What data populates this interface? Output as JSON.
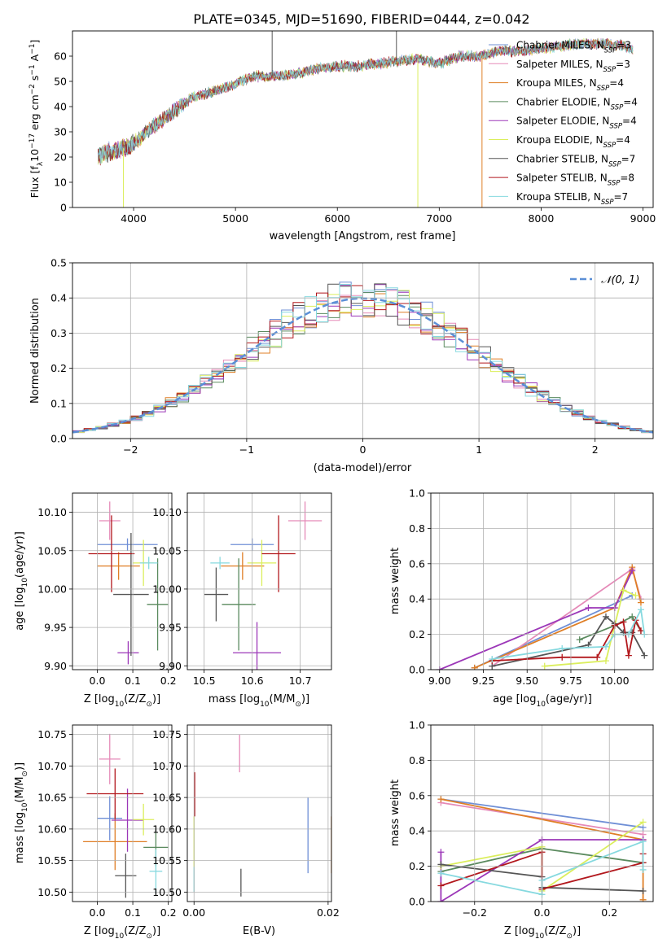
{
  "figure": {
    "title": "PLATE=0345, MJD=51690, FIBERID=0444, z=0.042"
  },
  "colors": {
    "Chabrier MILES": "#6f8fd6",
    "Salpeter MILES": "#e58ab8",
    "Kroupa MILES": "#df7f26",
    "Chabrier ELODIE": "#5a8a5e",
    "Salpeter ELODIE": "#9c37b8",
    "Kroupa ELODIE": "#dbee5c",
    "Chabrier STELIB": "#555555",
    "Salpeter STELIB": "#b2181d",
    "Kroupa STELIB": "#86d9df",
    "normal": "#5b8fd6"
  },
  "chart_data": [
    {
      "id": "spectrum",
      "type": "line",
      "xlabel": "wavelength [Angstrom, rest frame]",
      "ylabel": "Flux [f",
      "ylabel_sub": "λ",
      "ylabel_rest": "10",
      "ylabel_exp1": "−17",
      "ylabel_mid": " erg cm",
      "ylabel_exp2": "−2",
      "ylabel_mid2": " s",
      "ylabel_exp3": "−1",
      "ylabel_end": " A",
      "ylabel_exp4": "−1",
      "ylabel_close": "]",
      "xlim": [
        3400,
        9100
      ],
      "ylim": [
        0,
        70
      ],
      "xticks": [
        4000,
        5000,
        6000,
        7000,
        8000,
        9000
      ],
      "yticks": [
        0,
        10,
        20,
        30,
        40,
        50,
        60
      ],
      "legend": [
        {
          "model": "Chabrier MILES",
          "label": "Chabrier MILES, N",
          "sub": "SSP",
          "count": "=3"
        },
        {
          "model": "Salpeter MILES",
          "label": "Salpeter MILES, N",
          "sub": "SSP",
          "count": "=3"
        },
        {
          "model": "Kroupa MILES",
          "label": "Kroupa MILES, N",
          "sub": "SSP",
          "count": "=4"
        },
        {
          "model": "Chabrier ELODIE",
          "label": "Chabrier ELODIE, N",
          "sub": "SSP",
          "count": "=4"
        },
        {
          "model": "Salpeter ELODIE",
          "label": "Salpeter ELODIE, N",
          "sub": "SSP",
          "count": "=4"
        },
        {
          "model": "Kroupa ELODIE",
          "label": "Kroupa ELODIE, N",
          "sub": "SSP",
          "count": "=4"
        },
        {
          "model": "Chabrier STELIB",
          "label": "Chabrier STELIB, N",
          "sub": "SSP",
          "count": "=7"
        },
        {
          "model": "Salpeter STELIB",
          "label": "Salpeter STELIB, N",
          "sub": "SSP",
          "count": "=8"
        },
        {
          "model": "Kroupa STELIB",
          "label": "Kroupa STELIB, N",
          "sub": "SSP",
          "count": "=7"
        }
      ],
      "continuum": {
        "wavelength": [
          3650,
          3750,
          3850,
          3950,
          4050,
          4150,
          4300,
          4450,
          4600,
          4800,
          5000,
          5200,
          5400,
          5600,
          5800,
          6000,
          6200,
          6400,
          6600,
          6800,
          7000,
          7200,
          7400,
          7600,
          7800,
          8000,
          8200,
          8400,
          8600,
          8800,
          8900
        ],
        "flux": [
          20,
          22,
          23,
          24,
          27,
          31,
          35,
          40,
          44,
          46,
          49,
          52,
          52,
          53,
          55,
          56,
          56,
          57,
          58,
          59,
          57,
          60,
          60,
          62,
          62,
          63,
          64,
          65,
          65,
          64,
          63
        ]
      },
      "dropouts": [
        {
          "wavelength": 3900,
          "model": "Kroupa ELODIE",
          "to": 0
        },
        {
          "wavelength": 6790,
          "model": "Kroupa ELODIE",
          "to": 0
        },
        {
          "wavelength": 7420,
          "model": "Kroupa MILES",
          "to": 0
        },
        {
          "wavelength": 5360,
          "model": "Chabrier STELIB",
          "to": 70
        },
        {
          "wavelength": 6580,
          "model": "Chabrier STELIB",
          "to": 70
        }
      ]
    },
    {
      "id": "residuals",
      "type": "line",
      "xlabel": "(data-model)/error",
      "ylabel": "Normed distribution",
      "xlim": [
        -2.5,
        2.5
      ],
      "ylim": [
        0,
        0.5
      ],
      "xticks": [
        -2,
        -1,
        0,
        1,
        2
      ],
      "yticks": [
        0.0,
        0.1,
        0.2,
        0.3,
        0.4,
        0.5
      ],
      "grid": true,
      "legend": [
        {
          "label": "𝒩(0, 1)",
          "model": "normal"
        }
      ],
      "histogram_bins": {
        "start": -2.5,
        "width": 0.1,
        "count": 50
      },
      "series_note": "9 step histograms that follow the N(0,1) curve with scatter"
    },
    {
      "id": "age_vs_Z",
      "type": "scatter",
      "xlabel": "Z [log",
      "xlabel_sub": "10",
      "xlabel_rest": "(Z/Z",
      "xlabel_sun": "⊙",
      "xlabel_close": ")]",
      "ylabel": "age  [log",
      "ylabel_sub": "10",
      "ylabel_rest": "(age/yr)]",
      "xlim": [
        -0.07,
        0.21
      ],
      "ylim": [
        9.895,
        10.125
      ],
      "xticks": [
        0.0,
        0.1,
        0.2
      ],
      "yticks": [
        9.9,
        9.95,
        10.0,
        10.05,
        10.1
      ],
      "grid": true,
      "points": [
        {
          "model": "Chabrier MILES",
          "x": 0.085,
          "xerr": 0.085,
          "y": 10.058,
          "yerr": 0.008
        },
        {
          "model": "Salpeter MILES",
          "x": 0.035,
          "xerr": 0.03,
          "y": 10.089,
          "yerr": 0.025
        },
        {
          "model": "Kroupa MILES",
          "x": 0.06,
          "xerr": 0.06,
          "y": 10.03,
          "yerr": 0.018
        },
        {
          "model": "Chabrier ELODIE",
          "x": 0.17,
          "xerr": 0.03,
          "y": 9.98,
          "yerr": 0.06
        },
        {
          "model": "Salpeter ELODIE",
          "x": 0.087,
          "xerr": 0.03,
          "y": 9.917,
          "yerr": 0.015
        },
        {
          "model": "Kroupa ELODIE",
          "x": 0.13,
          "xerr": 0.03,
          "y": 10.034,
          "yerr": 0.03
        },
        {
          "model": "Chabrier STELIB",
          "x": 0.095,
          "xerr": 0.05,
          "y": 9.993,
          "yerr": 0.08
        },
        {
          "model": "Salpeter STELIB",
          "x": 0.04,
          "xerr": 0.065,
          "y": 10.046,
          "yerr": 0.05
        },
        {
          "model": "Kroupa STELIB",
          "x": 0.145,
          "xerr": 0.025,
          "y": 10.034,
          "yerr": 0.008
        }
      ]
    },
    {
      "id": "age_vs_mass",
      "type": "scatter",
      "xlabel": "mass [log",
      "xlabel_sub": "10",
      "xlabel_rest": "(M/M",
      "xlabel_sun": "⊙",
      "xlabel_close": ")]",
      "xlim": [
        10.465,
        10.765
      ],
      "ylim": [
        9.895,
        10.125
      ],
      "xticks": [
        10.5,
        10.6,
        10.7
      ],
      "yticks": [
        9.9,
        9.95,
        10.0,
        10.05,
        10.1
      ],
      "grid": true,
      "points": [
        {
          "model": "Chabrier MILES",
          "x": 10.6,
          "xerr": 0.045,
          "y": 10.058,
          "yerr": 0.008
        },
        {
          "model": "Salpeter MILES",
          "x": 10.71,
          "xerr": 0.035,
          "y": 10.089,
          "yerr": 0.025
        },
        {
          "model": "Kroupa MILES",
          "x": 10.58,
          "xerr": 0.045,
          "y": 10.03,
          "yerr": 0.018
        },
        {
          "model": "Chabrier ELODIE",
          "x": 10.572,
          "xerr": 0.035,
          "y": 9.98,
          "yerr": 0.06
        },
        {
          "model": "Salpeter ELODIE",
          "x": 10.61,
          "xerr": 0.05,
          "y": 9.917,
          "yerr": 0.04
        },
        {
          "model": "Kroupa ELODIE",
          "x": 10.62,
          "xerr": 0.03,
          "y": 10.034,
          "yerr": 0.03
        },
        {
          "model": "Chabrier STELIB",
          "x": 10.525,
          "xerr": 0.025,
          "y": 9.993,
          "yerr": 0.035
        },
        {
          "model": "Salpeter STELIB",
          "x": 10.655,
          "xerr": 0.035,
          "y": 10.046,
          "yerr": 0.05
        },
        {
          "model": "Kroupa STELIB",
          "x": 10.533,
          "xerr": 0.02,
          "y": 10.034,
          "yerr": 0.008
        }
      ]
    },
    {
      "id": "mass_weight_vs_age",
      "type": "line",
      "xlabel": "age  [log",
      "xlabel_sub": "10",
      "xlabel_rest": "(age/yr)]",
      "ylabel": "mass weight",
      "xlim": [
        8.95,
        10.22
      ],
      "ylim": [
        0,
        1.0
      ],
      "xticks": [
        9.0,
        9.25,
        9.5,
        9.75,
        10.0
      ],
      "yticks": [
        0.0,
        0.2,
        0.4,
        0.6,
        0.8,
        1.0
      ],
      "grid": true,
      "series": [
        {
          "model": "Chabrier MILES",
          "x": [
            9.2,
            10.1
          ],
          "y": [
            0.01,
            0.42
          ]
        },
        {
          "model": "Salpeter MILES",
          "x": [
            9.3,
            10.1,
            10.15
          ],
          "y": [
            0.02,
            0.57,
            0.4
          ]
        },
        {
          "model": "Kroupa MILES",
          "x": [
            9.2,
            10.0,
            10.1,
            10.15
          ],
          "y": [
            0.01,
            0.35,
            0.58,
            0.38
          ]
        },
        {
          "model": "Chabrier ELODIE",
          "x": [
            9.8,
            10.0,
            10.1,
            10.15
          ],
          "y": [
            0.17,
            0.25,
            0.3,
            0.22
          ]
        },
        {
          "model": "Salpeter ELODIE",
          "x": [
            9.0,
            9.85,
            10.0,
            10.1
          ],
          "y": [
            0.0,
            0.35,
            0.35,
            0.56
          ]
        },
        {
          "model": "Kroupa ELODIE",
          "x": [
            9.6,
            9.95,
            10.05,
            10.12
          ],
          "y": [
            0.02,
            0.05,
            0.45,
            0.42
          ]
        },
        {
          "model": "Chabrier STELIB",
          "x": [
            9.3,
            9.85,
            9.95,
            10.0,
            10.05,
            10.1,
            10.17
          ],
          "y": [
            0.02,
            0.14,
            0.3,
            0.26,
            0.21,
            0.21,
            0.08
          ]
        },
        {
          "model": "Salpeter STELIB",
          "x": [
            9.3,
            9.7,
            9.9,
            10.0,
            10.05,
            10.08,
            10.12,
            10.15
          ],
          "y": [
            0.05,
            0.07,
            0.07,
            0.25,
            0.27,
            0.08,
            0.28,
            0.22
          ]
        },
        {
          "model": "Kroupa STELIB",
          "x": [
            9.3,
            9.7,
            9.95,
            10.0,
            10.08,
            10.15,
            10.17
          ],
          "y": [
            0.06,
            0.12,
            0.13,
            0.2,
            0.2,
            0.34,
            0.2
          ]
        }
      ]
    },
    {
      "id": "mass_vs_Z",
      "type": "scatter",
      "xlabel": "Z [log",
      "xlabel_sub": "10",
      "xlabel_rest": "(Z/Z",
      "xlabel_sun": "⊙",
      "xlabel_close": ")]",
      "ylabel": "mass [log",
      "ylabel_sub": "10",
      "ylabel_rest": "(M/M",
      "ylabel_sun": "⊙",
      "ylabel_close": ")]",
      "xlim": [
        -0.07,
        0.21
      ],
      "ylim": [
        10.485,
        10.765
      ],
      "xticks": [
        0.0,
        0.1,
        0.2
      ],
      "yticks": [
        10.5,
        10.55,
        10.6,
        10.65,
        10.7,
        10.75
      ],
      "grid": true,
      "points": [
        {
          "model": "Chabrier MILES",
          "x": 0.035,
          "xerr": 0.035,
          "y": 10.617,
          "yerr": 0.035
        },
        {
          "model": "Salpeter MILES",
          "x": 0.035,
          "xerr": 0.03,
          "y": 10.711,
          "yerr": 0.04
        },
        {
          "model": "Kroupa MILES",
          "x": 0.05,
          "xerr": 0.09,
          "y": 10.58,
          "yerr": 0.045
        },
        {
          "model": "Chabrier ELODIE",
          "x": 0.165,
          "xerr": 0.035,
          "y": 10.571,
          "yerr": 0.03
        },
        {
          "model": "Salpeter ELODIE",
          "x": 0.085,
          "xerr": 0.045,
          "y": 10.614,
          "yerr": 0.05
        },
        {
          "model": "Kroupa ELODIE",
          "x": 0.13,
          "xerr": 0.03,
          "y": 10.615,
          "yerr": 0.025
        },
        {
          "model": "Chabrier STELIB",
          "x": 0.08,
          "xerr": 0.03,
          "y": 10.526,
          "yerr": 0.035
        },
        {
          "model": "Salpeter STELIB",
          "x": 0.05,
          "xerr": 0.08,
          "y": 10.656,
          "yerr": 0.04
        },
        {
          "model": "Kroupa STELIB",
          "x": 0.165,
          "xerr": 0.018,
          "y": 10.533,
          "yerr": 0.035
        }
      ]
    },
    {
      "id": "mass_vs_EBV",
      "type": "scatter",
      "xlabel": "E(B-V)",
      "xlim": [
        -0.001,
        0.0205
      ],
      "ylim": [
        10.485,
        10.765
      ],
      "xticks": [
        0.0,
        0.02
      ],
      "yticks": [
        10.5,
        10.55,
        10.6,
        10.65,
        10.7,
        10.75
      ],
      "grid": true,
      "points": [
        {
          "model": "Chabrier MILES",
          "x": 0.017,
          "y": 10.59,
          "yerr": 0.06
        },
        {
          "model": "Salpeter MILES",
          "x": 0.0068,
          "y": 10.72,
          "yerr": 0.03
        },
        {
          "model": "Kroupa MILES",
          "x": 0.0205,
          "y": 10.575,
          "yerr": 0.045
        },
        {
          "model": "Chabrier STELIB",
          "x": 0.007,
          "y": 10.515,
          "yerr": 0.022
        },
        {
          "model": "Salpeter STELIB",
          "x": 0.0001,
          "y": 10.655,
          "yerr": 0.035
        },
        {
          "model": "Kroupa ELODIE",
          "x": 0.0,
          "y": 10.58,
          "yerr": 0.04
        },
        {
          "model": "Kroupa STELIB",
          "x": 0.0,
          "y": 10.52,
          "yerr": 0.02
        }
      ]
    },
    {
      "id": "mass_weight_vs_Z",
      "type": "line",
      "xlabel": "Z [log",
      "xlabel_sub": "10",
      "xlabel_rest": "(Z/Z",
      "xlabel_sun": "⊙",
      "xlabel_close": ")]",
      "ylabel": "mass weight",
      "xlim": [
        -0.33,
        0.33
      ],
      "ylim": [
        0,
        1.0
      ],
      "xticks": [
        -0.2,
        0.0,
        0.2
      ],
      "yticks": [
        0.0,
        0.2,
        0.4,
        0.6,
        0.8,
        1.0
      ],
      "grid": true,
      "series": [
        {
          "model": "Chabrier MILES",
          "x": [
            -0.3,
            0.3
          ],
          "y": [
            0.58,
            0.42
          ]
        },
        {
          "model": "Salpeter MILES",
          "x": [
            -0.3,
            0.3
          ],
          "y": [
            0.56,
            0.38
          ]
        },
        {
          "model": "Kroupa MILES",
          "x": [
            -0.3,
            0.3,
            0.3
          ],
          "y": [
            0.58,
            0.35,
            0.01
          ]
        },
        {
          "model": "Chabrier ELODIE",
          "x": [
            -0.3,
            0.0,
            0.3
          ],
          "y": [
            0.17,
            0.3,
            0.22
          ]
        },
        {
          "model": "Salpeter ELODIE",
          "x": [
            -0.3,
            -0.3,
            0.0,
            0.0,
            0.3
          ],
          "y": [
            0.28,
            0.0,
            0.35,
            0.35,
            0.35
          ]
        },
        {
          "model": "Kroupa ELODIE",
          "x": [
            -0.3,
            0.0,
            0.0,
            0.3
          ],
          "y": [
            0.2,
            0.31,
            0.06,
            0.45
          ]
        },
        {
          "model": "Chabrier STELIB",
          "x": [
            -0.3,
            0.0,
            0.0,
            0.3
          ],
          "y": [
            0.21,
            0.14,
            0.08,
            0.06
          ]
        },
        {
          "model": "Salpeter STELIB",
          "x": [
            -0.3,
            0.0,
            0.0,
            0.3,
            0.3
          ],
          "y": [
            0.09,
            0.28,
            0.07,
            0.22,
            0.27
          ]
        },
        {
          "model": "Kroupa STELIB",
          "x": [
            -0.3,
            0.0,
            0.0,
            0.3,
            0.3
          ],
          "y": [
            0.16,
            0.04,
            0.12,
            0.34,
            0.18
          ]
        }
      ]
    }
  ]
}
